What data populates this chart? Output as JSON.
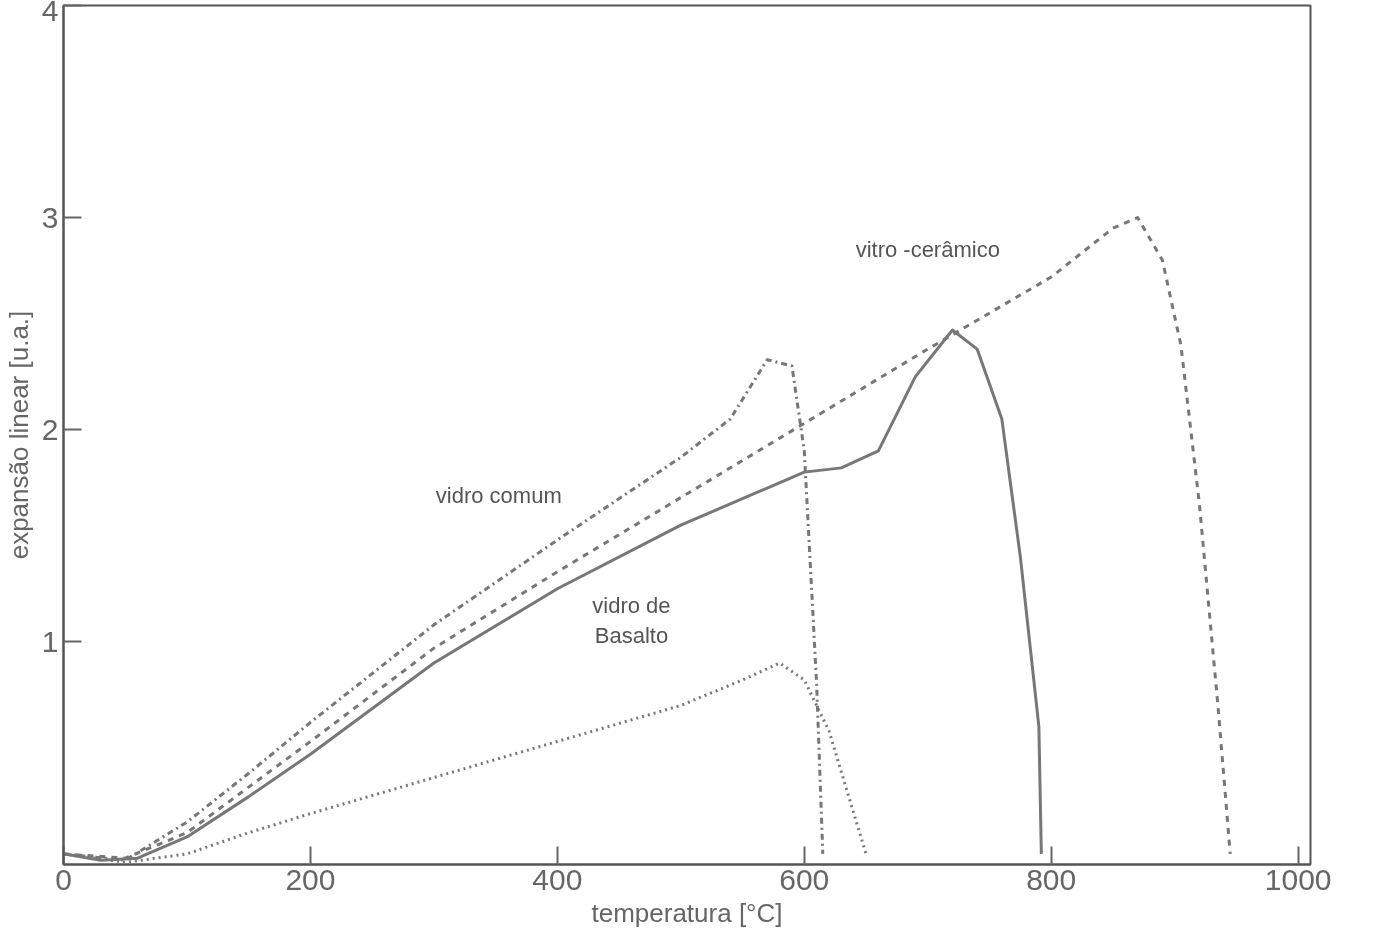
{
  "chart_data": {
    "type": "line",
    "xlabel": "temperatura [°C]",
    "ylabel": "expansão linear [u.a.]",
    "xlim": [
      0,
      1010
    ],
    "ylim": [
      -0.05,
      4
    ],
    "xticks": [
      0,
      200,
      400,
      600,
      800,
      1000
    ],
    "yticks": [
      1,
      2,
      3,
      4
    ],
    "grid": false,
    "marker": "none",
    "series": [
      {
        "color": "#777777",
        "line_style": "solid",
        "x": [
          0,
          30,
          60,
          100,
          150,
          200,
          300,
          400,
          500,
          600,
          630,
          660,
          690,
          720,
          740,
          760,
          775,
          790,
          792
        ],
        "values": [
          0,
          -0.03,
          -0.02,
          0.08,
          0.27,
          0.47,
          0.9,
          1.25,
          1.55,
          1.8,
          1.82,
          1.9,
          2.25,
          2.47,
          2.38,
          2.05,
          1.4,
          0.6,
          0
        ]
      },
      {
        "color": "#777777",
        "line_style": "dashdot",
        "x": [
          0,
          50,
          100,
          150,
          200,
          300,
          400,
          500,
          540,
          570,
          590,
          600,
          610,
          615
        ],
        "values": [
          0,
          -0.03,
          0.15,
          0.38,
          0.62,
          1.08,
          1.48,
          1.87,
          2.05,
          2.33,
          2.3,
          1.9,
          0.8,
          0
        ]
      },
      {
        "color": "#777777",
        "line_style": "dashed",
        "x": [
          0,
          50,
          100,
          200,
          300,
          400,
          500,
          600,
          700,
          800,
          850,
          870,
          890,
          905,
          920,
          935,
          945
        ],
        "values": [
          0,
          -0.02,
          0.1,
          0.53,
          0.97,
          1.33,
          1.68,
          2.03,
          2.38,
          2.72,
          2.95,
          3.0,
          2.8,
          2.4,
          1.65,
          0.7,
          0
        ]
      },
      {
        "color": "#777777",
        "line_style": "dotted",
        "x": [
          0,
          50,
          100,
          150,
          200,
          300,
          400,
          500,
          550,
          580,
          600,
          620,
          635,
          650
        ],
        "values": [
          0,
          -0.04,
          0.0,
          0.1,
          0.19,
          0.36,
          0.53,
          0.7,
          0.82,
          0.9,
          0.82,
          0.58,
          0.29,
          0
        ]
      }
    ],
    "annotations": [
      "vidro  comum",
      "vidro de\nBasalto",
      "vitro -cerâmico"
    ]
  }
}
